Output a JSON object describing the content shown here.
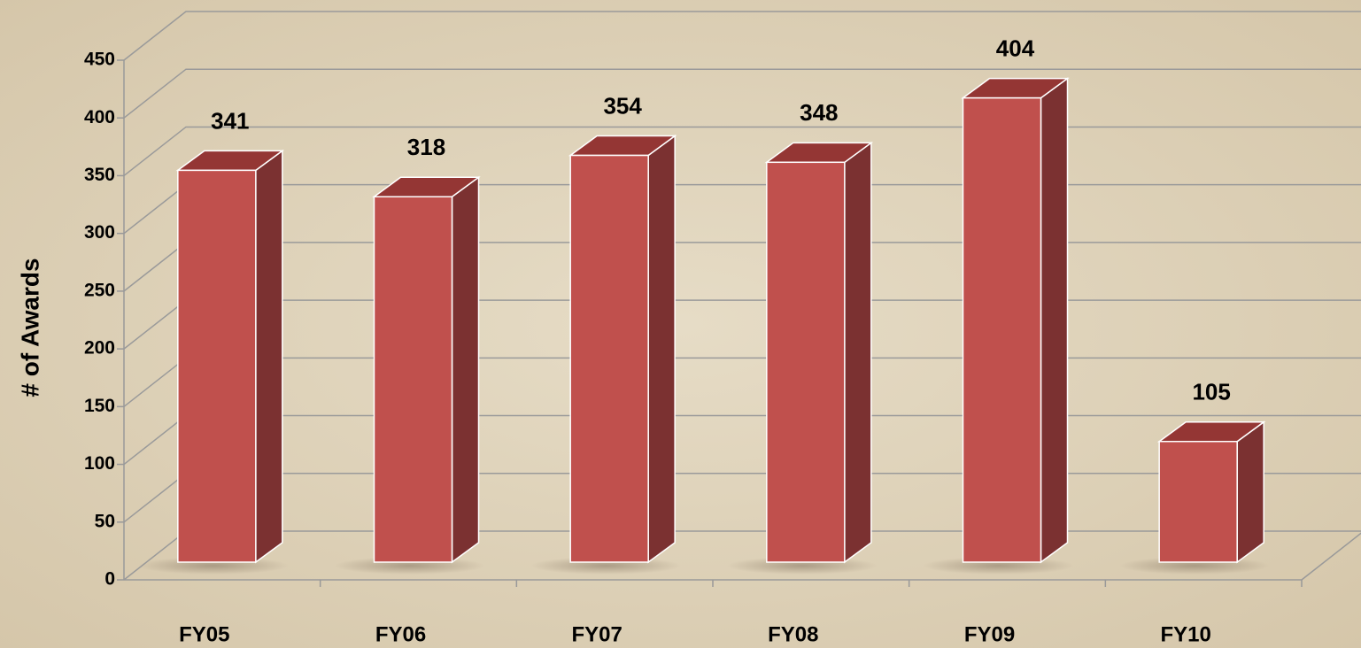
{
  "chart_data": {
    "type": "bar3d",
    "y_label": "# of Awards",
    "categories": [
      "FY05",
      "FY06",
      "FY07",
      "FY08",
      "FY09",
      "FY10"
    ],
    "values": [
      341,
      318,
      354,
      348,
      404,
      105
    ],
    "color": "#c0504d",
    "ylim": [
      0,
      450
    ],
    "yticks": [
      0,
      50,
      100,
      150,
      200,
      250,
      300,
      350,
      400,
      450
    ],
    "grid": true
  }
}
